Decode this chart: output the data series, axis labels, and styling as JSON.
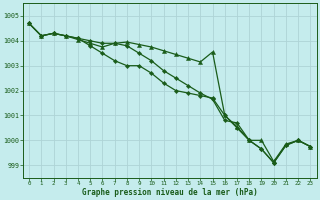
{
  "title": "Graphe pression niveau de la mer (hPa)",
  "background_color": "#c5eced",
  "grid_color": "#aed4d6",
  "line_color": "#1a5c1a",
  "xlim": [
    -0.5,
    23.5
  ],
  "ylim": [
    998.5,
    1005.5
  ],
  "yticks": [
    999,
    1000,
    1001,
    1002,
    1003,
    1004,
    1005
  ],
  "xticks": [
    0,
    1,
    2,
    3,
    4,
    5,
    6,
    7,
    8,
    9,
    10,
    11,
    12,
    13,
    14,
    15,
    16,
    17,
    18,
    19,
    20,
    21,
    22,
    23
  ],
  "line1_x": [
    0,
    1,
    2,
    3,
    4,
    5,
    6,
    7,
    8,
    9,
    10,
    11,
    12,
    13,
    14,
    15,
    16,
    17,
    18,
    19,
    20,
    21,
    22,
    23
  ],
  "line1_y": [
    1004.7,
    1004.2,
    1004.3,
    1004.2,
    1004.05,
    1003.9,
    1003.75,
    1003.9,
    1003.95,
    1003.85,
    1003.75,
    1003.6,
    1003.45,
    1003.3,
    1003.15,
    1003.55,
    1001.0,
    1000.55,
    1000.0,
    1000.0,
    999.15,
    999.85,
    1000.0,
    999.75
  ],
  "line2_x": [
    0,
    1,
    2,
    3,
    4,
    5,
    6,
    7,
    8,
    9,
    10,
    11,
    12,
    13,
    14,
    15,
    16,
    17,
    18,
    19,
    20,
    21,
    22,
    23
  ],
  "line2_y": [
    1004.7,
    1004.2,
    1004.3,
    1004.2,
    1004.1,
    1003.8,
    1003.5,
    1003.2,
    1003.0,
    1003.0,
    1002.7,
    1002.3,
    1002.0,
    1001.9,
    1001.8,
    1001.7,
    1001.0,
    1000.5,
    1000.0,
    999.65,
    999.1,
    999.8,
    1000.0,
    999.75
  ],
  "line3_x": [
    0,
    1,
    2,
    3,
    4,
    5,
    6,
    7,
    8,
    9,
    10,
    11,
    12,
    13,
    14,
    15,
    16,
    17,
    18,
    19,
    20,
    21,
    22,
    23
  ],
  "line3_y": [
    1004.7,
    1004.2,
    1004.3,
    1004.2,
    1004.1,
    1004.0,
    1003.9,
    1003.9,
    1003.8,
    1003.5,
    1003.2,
    1002.8,
    1002.5,
    1002.2,
    1001.9,
    1001.65,
    1000.8,
    1000.7,
    1000.0,
    999.65,
    999.1,
    999.8,
    1000.0,
    999.75
  ]
}
